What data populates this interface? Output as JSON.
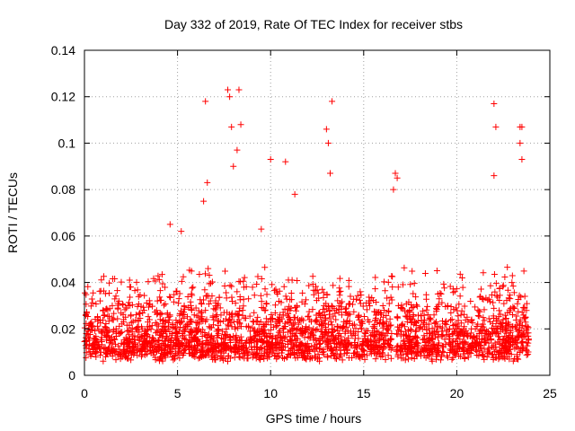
{
  "chart_data": {
    "type": "scatter",
    "title": "Day 332 of 2019, Rate Of TEC Index for receiver stbs",
    "xlabel": "GPS time / hours",
    "ylabel": "ROTI / TECUs",
    "xlim": [
      0,
      24
    ],
    "ylim": [
      0,
      0.14
    ],
    "xticks": [
      0,
      5,
      10,
      15,
      20,
      25
    ],
    "xtick_labels": [
      "0",
      "5",
      "10",
      "15",
      "20",
      "25"
    ],
    "yticks": [
      0,
      0.02,
      0.04,
      0.06,
      0.08,
      0.1,
      0.12,
      0.14
    ],
    "ytick_labels": [
      "0",
      "0.02",
      "0.04",
      "0.06",
      "0.08",
      "0.1",
      "0.12",
      "0.14"
    ],
    "grid": true,
    "marker": "+",
    "color": "#ff0000",
    "series": [
      {
        "name": "ROTI",
        "points_note": "dense band roughly 0.005-0.04 across all hours with a data gap near 16.7 h",
        "x": [
          0.1,
          0.3,
          0.5,
          0.7,
          0.9,
          1.1,
          1.3,
          1.5,
          1.7,
          1.9,
          2.1,
          2.3,
          2.5,
          2.7,
          2.9,
          3.1,
          3.3,
          3.5,
          3.7,
          3.9,
          4.1,
          4.3,
          4.5,
          4.7,
          4.9,
          5.1,
          5.3,
          5.5,
          5.7,
          5.9,
          6.1,
          6.3,
          6.5,
          6.7,
          6.9,
          7.1,
          7.3,
          7.5,
          7.7,
          7.9,
          8.1,
          8.3,
          8.5,
          8.7,
          8.9,
          9.1,
          9.3,
          9.5,
          9.7,
          9.9,
          10.1,
          10.3,
          10.5,
          10.7,
          10.9,
          11.1,
          11.3,
          11.5,
          11.7,
          11.9,
          12.1,
          12.3,
          12.5,
          12.7,
          12.9,
          13.1,
          13.3,
          13.5,
          13.7,
          13.9,
          14.1,
          14.3,
          14.5,
          14.7,
          14.9,
          15.1,
          15.3,
          15.5,
          15.7,
          15.9,
          16.1,
          16.3,
          16.5,
          16.8,
          17.0,
          17.2,
          17.4,
          17.6,
          17.8,
          18.0,
          18.2,
          18.4,
          18.6,
          18.8,
          19.0,
          19.2,
          19.4,
          19.6,
          19.8,
          20.0,
          20.2,
          20.4,
          20.6,
          20.8,
          21.0,
          21.2,
          21.4,
          21.6,
          21.8,
          22.0,
          22.2,
          22.4,
          22.6,
          22.8,
          23.0,
          23.2,
          23.4,
          23.6,
          23.8,
          6.4,
          6.5,
          6.6,
          7.7,
          7.8,
          7.9,
          8.3,
          8.4,
          8.2,
          8.0,
          10.0,
          10.8,
          13.0,
          13.1,
          13.3,
          13.2,
          22.0,
          22.1,
          22.0,
          23.4,
          23.5,
          23.4,
          23.5,
          16.7,
          16.6,
          16.8,
          9.5,
          11.3,
          4.6,
          5.2
        ],
        "y": [
          0.018,
          0.022,
          0.016,
          0.025,
          0.019,
          0.021,
          0.017,
          0.024,
          0.02,
          0.018,
          0.023,
          0.019,
          0.026,
          0.017,
          0.021,
          0.02,
          0.018,
          0.024,
          0.016,
          0.022,
          0.019,
          0.021,
          0.025,
          0.018,
          0.02,
          0.023,
          0.017,
          0.022,
          0.019,
          0.026,
          0.02,
          0.024,
          0.028,
          0.021,
          0.025,
          0.019,
          0.023,
          0.027,
          0.022,
          0.026,
          0.02,
          0.024,
          0.028,
          0.021,
          0.019,
          0.023,
          0.025,
          0.02,
          0.022,
          0.018,
          0.024,
          0.021,
          0.026,
          0.02,
          0.023,
          0.019,
          0.025,
          0.022,
          0.018,
          0.021,
          0.024,
          0.02,
          0.023,
          0.019,
          0.026,
          0.022,
          0.02,
          0.024,
          0.018,
          0.021,
          0.023,
          0.019,
          0.022,
          0.025,
          0.02,
          0.018,
          0.023,
          0.021,
          0.019,
          0.024,
          0.022,
          0.02,
          0.018,
          0.025,
          0.017,
          0.021,
          0.019,
          0.023,
          0.016,
          0.02,
          0.022,
          0.018,
          0.024,
          0.019,
          0.021,
          0.017,
          0.023,
          0.02,
          0.018,
          0.022,
          0.019,
          0.021,
          0.017,
          0.024,
          0.02,
          0.018,
          0.022,
          0.019,
          0.023,
          0.02,
          0.018,
          0.021,
          0.019,
          0.022,
          0.017,
          0.02,
          0.023,
          0.019,
          0.021,
          0.075,
          0.118,
          0.083,
          0.123,
          0.12,
          0.107,
          0.123,
          0.108,
          0.097,
          0.09,
          0.093,
          0.092,
          0.106,
          0.1,
          0.118,
          0.087,
          0.117,
          0.107,
          0.086,
          0.107,
          0.107,
          0.1,
          0.093,
          0.087,
          0.08,
          0.085,
          0.063,
          0.078,
          0.065,
          0.062
        ]
      }
    ]
  }
}
